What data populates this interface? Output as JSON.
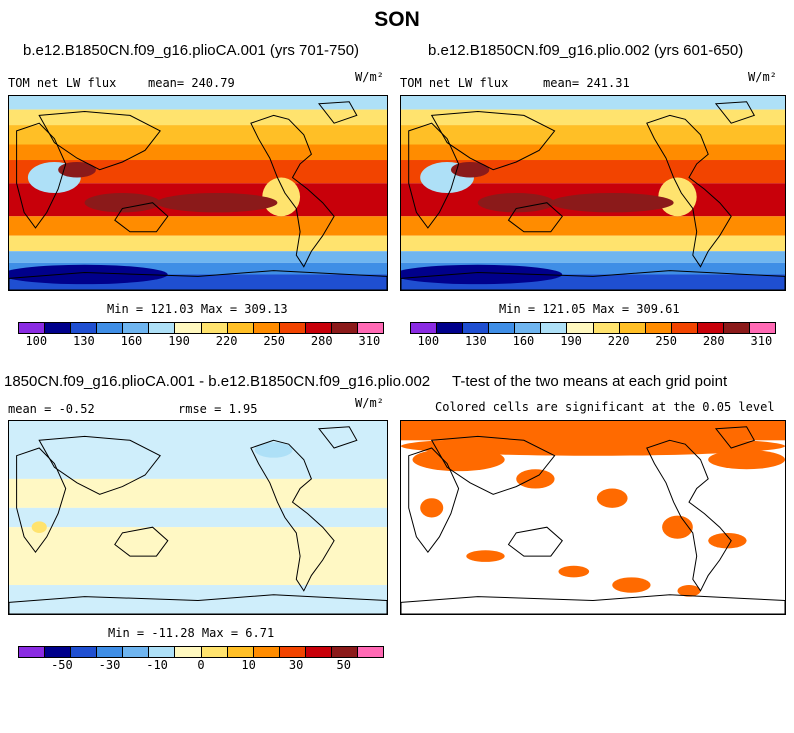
{
  "title": "SON",
  "panels": [
    {
      "case": "b.e12.B1850CN.f09_g16.plioCA.001 (yrs 701-750)",
      "left_label": "TOM net LW flux",
      "mean_label": "mean= 240.79",
      "units": "W/m²",
      "minmax": "Min = 121.03 Max = 309.13"
    },
    {
      "case": "b.e12.B1850CN.f09_g16.plio.002 (yrs 601-650)",
      "left_label": "TOM net LW flux",
      "mean_label": "mean= 241.31",
      "units": "W/m²",
      "minmax": "Min = 121.05 Max = 309.61"
    },
    {
      "case": "1850CN.f09_g16.plioCA.001 - b.e12.B1850CN.f09_g16.plio.002",
      "mean_label": "mean =  -0.52",
      "rmse_label": "rmse =   1.95",
      "units": "W/m²",
      "minmax": "Min = -11.28 Max =   6.71"
    },
    {
      "case": "T-test of the two means at each grid point",
      "subtitle": "Colored cells are significant at the 0.05 level"
    }
  ],
  "colorbar_abs": {
    "colors": [
      "#8a2be2",
      "#00008b",
      "#1f4fd1",
      "#3f8ee6",
      "#6fb5f0",
      "#aee0f7",
      "#fff8bf",
      "#ffe36e",
      "#ffbf26",
      "#ff8c00",
      "#f24400",
      "#c8000a",
      "#8b1a1a",
      "#ff69b4"
    ],
    "ticks": [
      "100",
      "130",
      "160",
      "190",
      "220",
      "250",
      "280",
      "310"
    ]
  },
  "colorbar_diff": {
    "colors": [
      "#8a2be2",
      "#00008b",
      "#1f4fd1",
      "#3f8ee6",
      "#6fb5f0",
      "#aee0f7",
      "#fff8bf",
      "#ffe36e",
      "#ffbf26",
      "#ff8c00",
      "#f24400",
      "#c8000a",
      "#8b1a1a",
      "#ff69b4"
    ],
    "ticks": [
      "-50",
      "-30",
      "-10",
      "0",
      "10",
      "30",
      "50"
    ]
  },
  "colors": {
    "significance": "#ff6a00",
    "diff_blue": "#cfeefb",
    "diff_yellow": "#fff8c4"
  }
}
